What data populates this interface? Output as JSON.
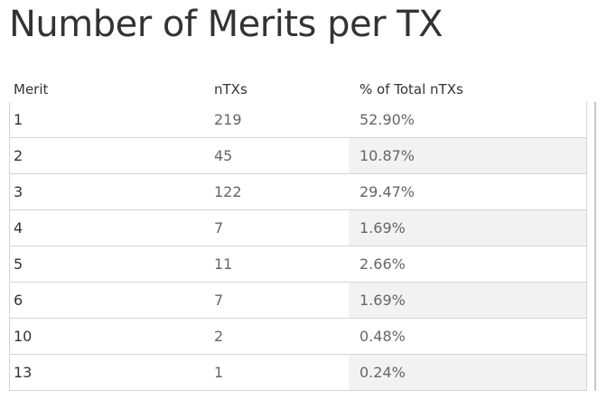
{
  "title": "Number of Merits per TX",
  "chart_data": {
    "type": "table",
    "title": "Number of Merits per TX",
    "columns": [
      "Merit",
      "nTXs",
      "% of Total nTXs"
    ],
    "rows": [
      {
        "merit": "1",
        "ntxs": "219",
        "pct": "52.90%"
      },
      {
        "merit": "2",
        "ntxs": "45",
        "pct": "10.87%"
      },
      {
        "merit": "3",
        "ntxs": "122",
        "pct": "29.47%"
      },
      {
        "merit": "4",
        "ntxs": "7",
        "pct": "1.69%"
      },
      {
        "merit": "5",
        "ntxs": "11",
        "pct": "2.66%"
      },
      {
        "merit": "6",
        "ntxs": "7",
        "pct": "1.69%"
      },
      {
        "merit": "10",
        "ntxs": "2",
        "pct": "0.48%"
      },
      {
        "merit": "13",
        "ntxs": "1",
        "pct": "0.24%"
      }
    ]
  },
  "colors": {
    "text": "#333333",
    "value_text": "#666666",
    "shaded_cell": "#f2f2f2",
    "grid": "#d4d4d4"
  }
}
